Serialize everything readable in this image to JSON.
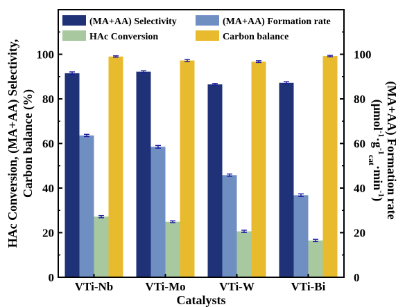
{
  "chart_data": {
    "type": "bar",
    "categories": [
      "VTi-Nb",
      "VTi-Mo",
      "VTi-W",
      "VTi-Bi"
    ],
    "xlabel": "Catalysts",
    "ylabel_left": [
      "HAc Conversion, (MA+AA) Selectivity,",
      "Carbon balance (%)"
    ],
    "ylabel_right": [
      "(MA+AA) Formation rate",
      "(μmol",
      "-1",
      "·g",
      "-1",
      "cat",
      "·min",
      "-1",
      ")"
    ],
    "ylim_left": [
      0,
      120
    ],
    "ylim_right": [
      0,
      120
    ],
    "yticks_left": [
      0,
      20,
      40,
      60,
      80,
      100
    ],
    "yticks_right": [
      0,
      20,
      40,
      60,
      80,
      100
    ],
    "legend": [
      {
        "label": "(MA+AA) Selectivity",
        "color": "#1f3278"
      },
      {
        "label": "(MA+AA) Formation rate",
        "color": "#6f8fc3"
      },
      {
        "label": "HAc Conversion",
        "color": "#a8c8a0"
      },
      {
        "label": "Carbon balance",
        "color": "#e8bb2e"
      }
    ],
    "series": [
      {
        "name": "(MA+AA) Selectivity",
        "axis": "left",
        "color": "#1f3278",
        "values": [
          91.5,
          92.2,
          86.5,
          87.2
        ],
        "errors": [
          0.6,
          0.4,
          0.4,
          0.5
        ]
      },
      {
        "name": "(MA+AA) Formation rate",
        "axis": "right",
        "color": "#6f8fc3",
        "values": [
          63.6,
          58.5,
          45.8,
          36.8
        ],
        "errors": [
          0.5,
          0.6,
          0.5,
          0.6
        ]
      },
      {
        "name": "HAc Conversion",
        "axis": "left",
        "color": "#a8c8a0",
        "values": [
          27.2,
          24.9,
          20.6,
          16.5
        ],
        "errors": [
          0.5,
          0.4,
          0.5,
          0.5
        ]
      },
      {
        "name": "Carbon balance",
        "axis": "left",
        "color": "#e8bb2e",
        "values": [
          99.0,
          97.2,
          96.7,
          99.2
        ],
        "errors": [
          0.3,
          0.5,
          0.4,
          0.3
        ]
      }
    ]
  }
}
